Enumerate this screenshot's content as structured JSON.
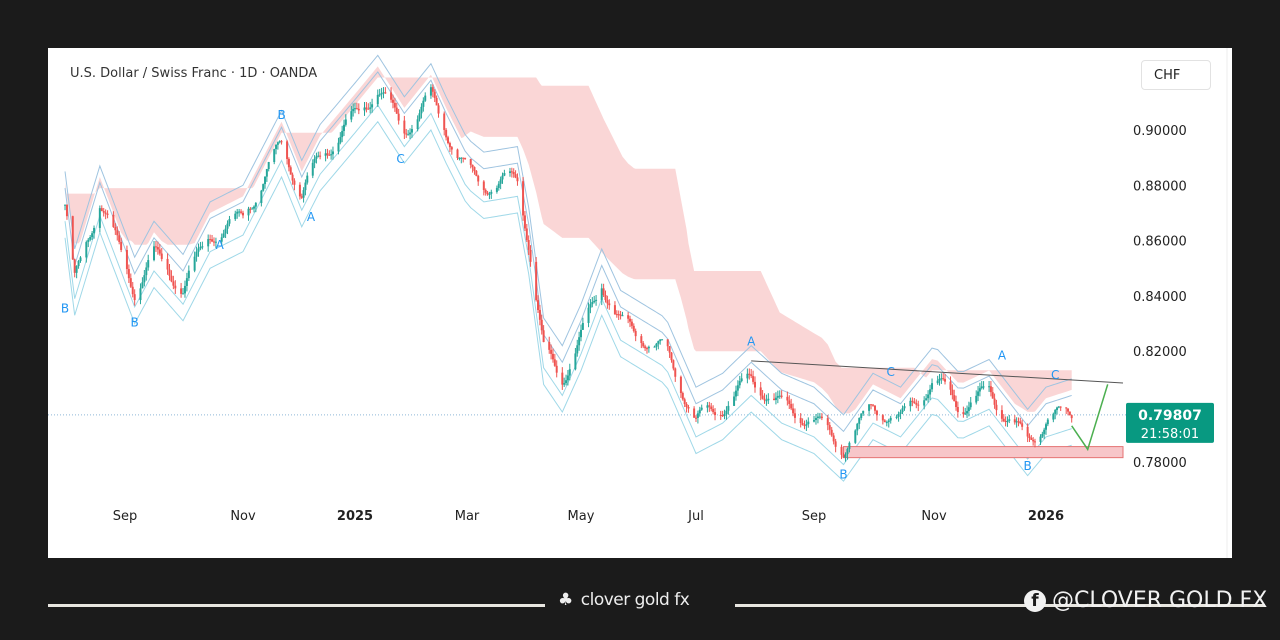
{
  "header": {
    "title": "U.S. Dollar / Swiss Franc · 1D · OANDA",
    "currency_button": "CHF"
  },
  "chart_data": {
    "type": "candlestick",
    "title": "U.S. Dollar / Swiss Franc · 1D · OANDA",
    "ylim": [
      0.772,
      0.925
    ],
    "y_ticks": [
      {
        "v": 0.9,
        "label": "0.90000"
      },
      {
        "v": 0.88,
        "label": "0.88000"
      },
      {
        "v": 0.86,
        "label": "0.86000"
      },
      {
        "v": 0.84,
        "label": "0.84000"
      },
      {
        "v": 0.82,
        "label": "0.82000"
      },
      {
        "v": 0.78,
        "label": "0.78000"
      }
    ],
    "x_ticks": [
      {
        "d": "2024-09-01",
        "label": "Sep"
      },
      {
        "d": "2024-11-01",
        "label": "Nov"
      },
      {
        "d": "2025-01-01",
        "label": "2025",
        "bold": true
      },
      {
        "d": "2025-03-01",
        "label": "Mar"
      },
      {
        "d": "2025-05-01",
        "label": "May"
      },
      {
        "d": "2025-07-01",
        "label": "Jul"
      },
      {
        "d": "2025-09-01",
        "label": "Sep"
      },
      {
        "d": "2025-11-01",
        "label": "Nov"
      },
      {
        "d": "2026-01-01",
        "label": "2026",
        "bold": true
      }
    ],
    "price_path": [
      [
        "2024-08-01",
        0.873
      ],
      [
        "2024-08-06",
        0.845
      ],
      [
        "2024-08-19",
        0.875
      ],
      [
        "2024-09-06",
        0.842
      ],
      [
        "2024-09-16",
        0.855
      ],
      [
        "2024-10-01",
        0.843
      ],
      [
        "2024-10-15",
        0.862
      ],
      [
        "2024-11-01",
        0.868
      ],
      [
        "2024-11-22",
        0.895
      ],
      [
        "2024-12-03",
        0.877
      ],
      [
        "2024-12-13",
        0.89
      ],
      [
        "2025-01-01",
        0.905
      ],
      [
        "2025-01-13",
        0.915
      ],
      [
        "2025-01-27",
        0.9
      ],
      [
        "2025-02-10",
        0.912
      ],
      [
        "2025-02-18",
        0.9
      ],
      [
        "2025-03-01",
        0.885
      ],
      [
        "2025-03-10",
        0.88
      ],
      [
        "2025-03-28",
        0.882
      ],
      [
        "2025-04-03",
        0.86
      ],
      [
        "2025-04-11",
        0.82
      ],
      [
        "2025-04-21",
        0.81
      ],
      [
        "2025-05-01",
        0.825
      ],
      [
        "2025-05-12",
        0.845
      ],
      [
        "2025-05-22",
        0.83
      ],
      [
        "2025-06-15",
        0.82
      ],
      [
        "2025-07-01",
        0.795
      ],
      [
        "2025-07-15",
        0.8
      ],
      [
        "2025-07-30",
        0.81
      ],
      [
        "2025-08-15",
        0.8
      ],
      [
        "2025-09-01",
        0.795
      ],
      [
        "2025-09-16",
        0.785
      ],
      [
        "2025-10-01",
        0.8
      ],
      [
        "2025-10-15",
        0.795
      ],
      [
        "2025-11-01",
        0.81
      ],
      [
        "2025-11-15",
        0.8
      ],
      [
        "2025-12-01",
        0.805
      ],
      [
        "2025-12-22",
        0.787
      ],
      [
        "2026-01-01",
        0.795
      ],
      [
        "2026-01-15",
        0.798
      ]
    ],
    "annotations": [
      {
        "d": "2024-08-01",
        "p": 0.834,
        "label": "B"
      },
      {
        "d": "2024-09-06",
        "p": 0.829,
        "label": "B"
      },
      {
        "d": "2024-10-20",
        "p": 0.857,
        "label": "A"
      },
      {
        "d": "2024-11-22",
        "p": 0.904,
        "label": "B"
      },
      {
        "d": "2024-12-08",
        "p": 0.867,
        "label": "A"
      },
      {
        "d": "2025-01-25",
        "p": 0.888,
        "label": "C"
      },
      {
        "d": "2025-07-30",
        "p": 0.822,
        "label": "A"
      },
      {
        "d": "2025-09-16",
        "p": 0.774,
        "label": "B"
      },
      {
        "d": "2025-10-10",
        "p": 0.811,
        "label": "C"
      },
      {
        "d": "2025-12-08",
        "p": 0.817,
        "label": "A"
      },
      {
        "d": "2025-12-22",
        "p": 0.777,
        "label": "B"
      },
      {
        "d": "2026-01-06",
        "p": 0.81,
        "label": "C"
      }
    ],
    "current_price": {
      "value": 0.79807,
      "label": "0.79807",
      "countdown": "21:58:01"
    },
    "colors": {
      "up": "#26a69a",
      "down": "#ef5350",
      "label": "#089981",
      "annotation": "#2196f3",
      "cloud": "#f8c8c8",
      "support": "#f7c6c9"
    }
  },
  "footer": {
    "brand": "clover gold fx",
    "social": "@CLOVER GOLD FX"
  }
}
